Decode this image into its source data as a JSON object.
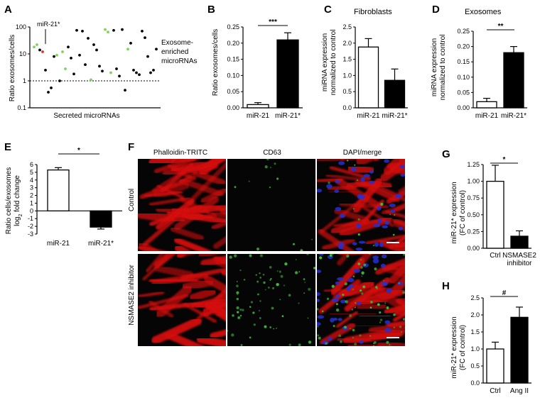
{
  "colors": {
    "black": "#000000",
    "green": "#7fd35a",
    "red": "#e23030",
    "micro_bg": "#050505",
    "phalloidin": "#d41010",
    "cd63": "#3fc23f",
    "dapi": "#2430d0"
  },
  "panels": {
    "A": {
      "letter": "A",
      "ylabel": "Ratio exosomes/cells",
      "xlabel": "Secreted microRNAs",
      "annotation": "miR-21*",
      "side_label_line1": "Exosome-",
      "side_label_line2": "enriched",
      "side_label_line3": "microRNAs"
    },
    "B": {
      "letter": "B",
      "sig": "***"
    },
    "C": {
      "letter": "C",
      "title": "Fibroblasts"
    },
    "D": {
      "letter": "D",
      "title": "Exosomes",
      "sig": "**"
    },
    "E": {
      "letter": "E",
      "sig": "*"
    },
    "F": {
      "letter": "F",
      "col1": "Phalloidin-TRITC",
      "col2": "CD63",
      "col3": "DAPI/merge",
      "row1": "Control",
      "row2": "NSMASE2 inhibitor"
    },
    "G": {
      "letter": "G",
      "sig": "*"
    },
    "H": {
      "letter": "H",
      "sig": "#"
    }
  },
  "chart_data": [
    {
      "panel": "A",
      "type": "scatter",
      "ylabel": "Ratio exosomes/cells",
      "xlabel": "Secreted microRNAs",
      "yscale": "log",
      "ylim": [
        0.1,
        100
      ],
      "yticks": [
        "0.1",
        "1",
        "10",
        "100"
      ],
      "reference_line": 1,
      "points": [
        {
          "i": 1,
          "y": 18,
          "c": "green"
        },
        {
          "i": 2,
          "y": 22,
          "c": "green"
        },
        {
          "i": 3,
          "y": 14,
          "c": "black"
        },
        {
          "i": 4,
          "y": 12,
          "c": "red"
        },
        {
          "i": 5,
          "y": 2.5,
          "c": "black"
        },
        {
          "i": 6,
          "y": 0.38,
          "c": "black"
        },
        {
          "i": 7,
          "y": 0.55,
          "c": "black"
        },
        {
          "i": 8,
          "y": 8,
          "c": "black"
        },
        {
          "i": 9,
          "y": 9,
          "c": "green"
        },
        {
          "i": 10,
          "y": 1.0,
          "c": "black"
        },
        {
          "i": 11,
          "y": 12,
          "c": "green"
        },
        {
          "i": 12,
          "y": 2.8,
          "c": "green"
        },
        {
          "i": 13,
          "y": 18,
          "c": "black"
        },
        {
          "i": 14,
          "y": 7,
          "c": "black"
        },
        {
          "i": 15,
          "y": 1.8,
          "c": "black"
        },
        {
          "i": 16,
          "y": 75,
          "c": "black"
        },
        {
          "i": 17,
          "y": 9,
          "c": "black"
        },
        {
          "i": 18,
          "y": 70,
          "c": "black"
        },
        {
          "i": 19,
          "y": 4,
          "c": "black"
        },
        {
          "i": 20,
          "y": 38,
          "c": "black"
        },
        {
          "i": 21,
          "y": 1.1,
          "c": "green"
        },
        {
          "i": 22,
          "y": 22,
          "c": "black"
        },
        {
          "i": 23,
          "y": 14,
          "c": "black"
        },
        {
          "i": 24,
          "y": 3.5,
          "c": "black"
        },
        {
          "i": 25,
          "y": 2.3,
          "c": "black"
        },
        {
          "i": 26,
          "y": 80,
          "c": "green"
        },
        {
          "i": 27,
          "y": 65,
          "c": "green"
        },
        {
          "i": 28,
          "y": 2.0,
          "c": "green"
        },
        {
          "i": 29,
          "y": 75,
          "c": "black"
        },
        {
          "i": 30,
          "y": 2.8,
          "c": "black"
        },
        {
          "i": 31,
          "y": 1.5,
          "c": "black"
        },
        {
          "i": 32,
          "y": 80,
          "c": "black"
        },
        {
          "i": 33,
          "y": 0.45,
          "c": "black"
        },
        {
          "i": 34,
          "y": 15,
          "c": "green"
        },
        {
          "i": 35,
          "y": 25,
          "c": "black"
        },
        {
          "i": 36,
          "y": 2.5,
          "c": "black"
        },
        {
          "i": 37,
          "y": 2.0,
          "c": "black"
        },
        {
          "i": 38,
          "y": 1.7,
          "c": "black"
        },
        {
          "i": 39,
          "y": 70,
          "c": "black"
        },
        {
          "i": 40,
          "y": 40,
          "c": "black"
        },
        {
          "i": 41,
          "y": 8,
          "c": "black"
        },
        {
          "i": 42,
          "y": 2.0,
          "c": "black"
        },
        {
          "i": 43,
          "y": 2.5,
          "c": "black"
        },
        {
          "i": 44,
          "y": 15,
          "c": "black"
        }
      ]
    },
    {
      "panel": "B",
      "type": "bar",
      "ylabel": "Ratio exosomes/cells",
      "categories": [
        "miR-21",
        "miR-21*"
      ],
      "values": [
        0.01,
        0.21
      ],
      "errors": [
        0.006,
        0.022
      ],
      "fill": [
        "white",
        "black"
      ],
      "ylim": [
        0,
        0.25
      ],
      "yticks": [
        "0.00",
        "0.05",
        "0.10",
        "0.15",
        "0.20",
        "0.25"
      ]
    },
    {
      "panel": "C",
      "type": "bar",
      "title": "Fibroblasts",
      "ylabel_line1": "miRNA expression",
      "ylabel_line2": "normalized to control",
      "categories": [
        "miR-21",
        "miR-21*"
      ],
      "values": [
        1.88,
        0.85
      ],
      "errors": [
        0.26,
        0.35
      ],
      "fill": [
        "white",
        "black"
      ],
      "ylim": [
        0,
        2.5
      ]
    },
    {
      "panel": "D",
      "type": "bar",
      "title": "Exosomes",
      "ylabel_line1": "miRNA expression",
      "ylabel_line2": "normalized to control",
      "categories": [
        "miR-21",
        "miR-21*"
      ],
      "values": [
        0.02,
        0.18
      ],
      "errors": [
        0.011,
        0.02
      ],
      "fill": [
        "white",
        "black"
      ],
      "ylim": [
        0,
        0.25
      ],
      "yticks": [
        "0.00",
        "0.05",
        "0.10",
        "0.15",
        "0.20",
        "0.25"
      ]
    },
    {
      "panel": "E",
      "type": "bar",
      "ylabel_line1": "Ratio cells/exosomes",
      "ylabel_line2": "log",
      "ylabel_sub": "2",
      "ylabel_line2b": " fold change",
      "categories": [
        "miR-21",
        "miR-21*"
      ],
      "values": [
        5.3,
        -2.1
      ],
      "errors": [
        0.3,
        0.25
      ],
      "fill": [
        "white",
        "black"
      ],
      "ylim": [
        -3,
        6
      ],
      "yticks": [
        "-3",
        "-2",
        "-1",
        "0",
        "1",
        "2",
        "3",
        "4",
        "5",
        "6"
      ]
    },
    {
      "panel": "G",
      "type": "bar",
      "ylabel_line1": "miR-21* expression",
      "ylabel_line2": "(FC of control)",
      "categories": [
        "Ctrl",
        "NSMASE2"
      ],
      "category_sub": "inhibitor",
      "values": [
        1.0,
        0.18
      ],
      "errors": [
        0.24,
        0.08
      ],
      "fill": [
        "white",
        "black"
      ],
      "ylim": [
        0,
        1.25
      ],
      "yticks": [
        "0.00",
        "0.25",
        "0.50",
        "0.75",
        "1.00",
        "1.25"
      ]
    },
    {
      "panel": "H",
      "type": "bar",
      "ylabel_line1": "miR-21* expression",
      "ylabel_line2": "(FC of control)",
      "categories": [
        "Ctrl",
        "Ang II"
      ],
      "values": [
        1.0,
        1.93
      ],
      "errors": [
        0.2,
        0.3
      ],
      "fill": [
        "white",
        "black"
      ],
      "ylim": [
        0,
        2.5
      ]
    }
  ]
}
